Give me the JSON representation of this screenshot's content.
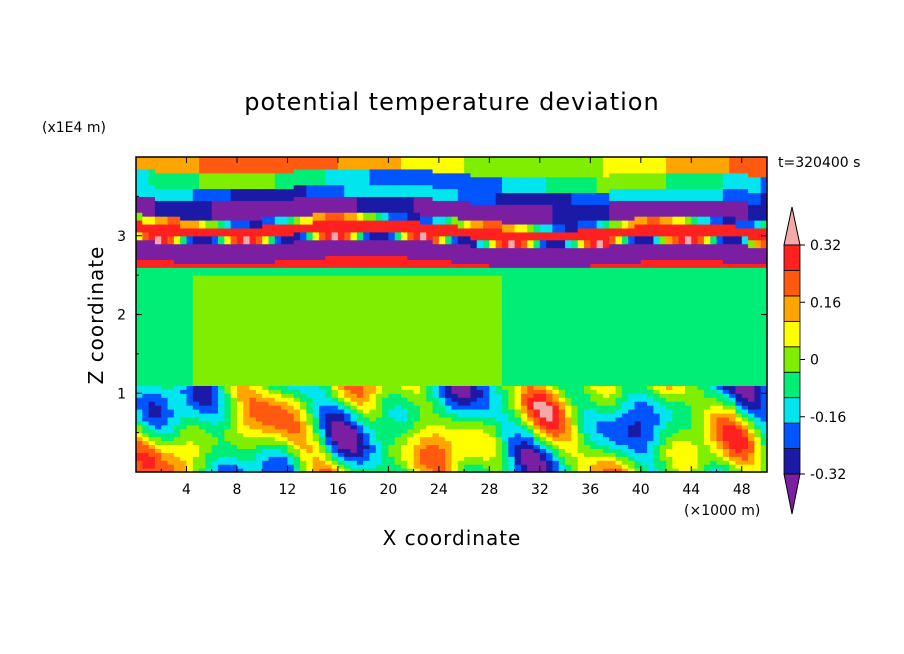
{
  "chart_data": {
    "type": "heatmap",
    "title": "potential temperature deviation",
    "xlabel": "X coordinate",
    "ylabel": "Z coordinate",
    "x_unit_label": "(×1000 m)",
    "y_unit_label": "(x1E4 m)",
    "time_label": "t=320400 s",
    "xlim": [
      0,
      50
    ],
    "ylim": [
      0,
      4
    ],
    "x_ticks": [
      4,
      8,
      12,
      16,
      20,
      24,
      28,
      32,
      36,
      40,
      44,
      48
    ],
    "y_ticks": [
      1,
      2,
      3
    ],
    "colorbar": {
      "tick_labels": [
        "0.32",
        "0.16",
        "0",
        "-0.16",
        "-0.32"
      ],
      "tick_values": [
        0.32,
        0.16,
        0,
        -0.16,
        -0.32
      ],
      "levels": [
        -0.4,
        -0.32,
        -0.24,
        -0.16,
        -0.08,
        0,
        0.08,
        0.16,
        0.24,
        0.32,
        0.4
      ],
      "colors": [
        "#7b1fa2",
        "#1a1aa6",
        "#0055ff",
        "#00e5ee",
        "#00ee76",
        "#80ee00",
        "#ffff00",
        "#ffa500",
        "#ff5a10",
        "#ff2020",
        "#f5a8a8"
      ]
    },
    "bands": [
      {
        "z_range": [
          0.0,
          1.08
        ],
        "description_level": "mixed",
        "dominant_values": [
          -0.4,
          0.4
        ]
      },
      {
        "z_range": [
          1.08,
          2.6
        ],
        "dominant_values": [
          0,
          0.04
        ]
      },
      {
        "z_range": [
          2.6,
          4.0
        ],
        "description_level": "layered",
        "dominant_values": [
          -0.4,
          0.4
        ]
      }
    ]
  }
}
